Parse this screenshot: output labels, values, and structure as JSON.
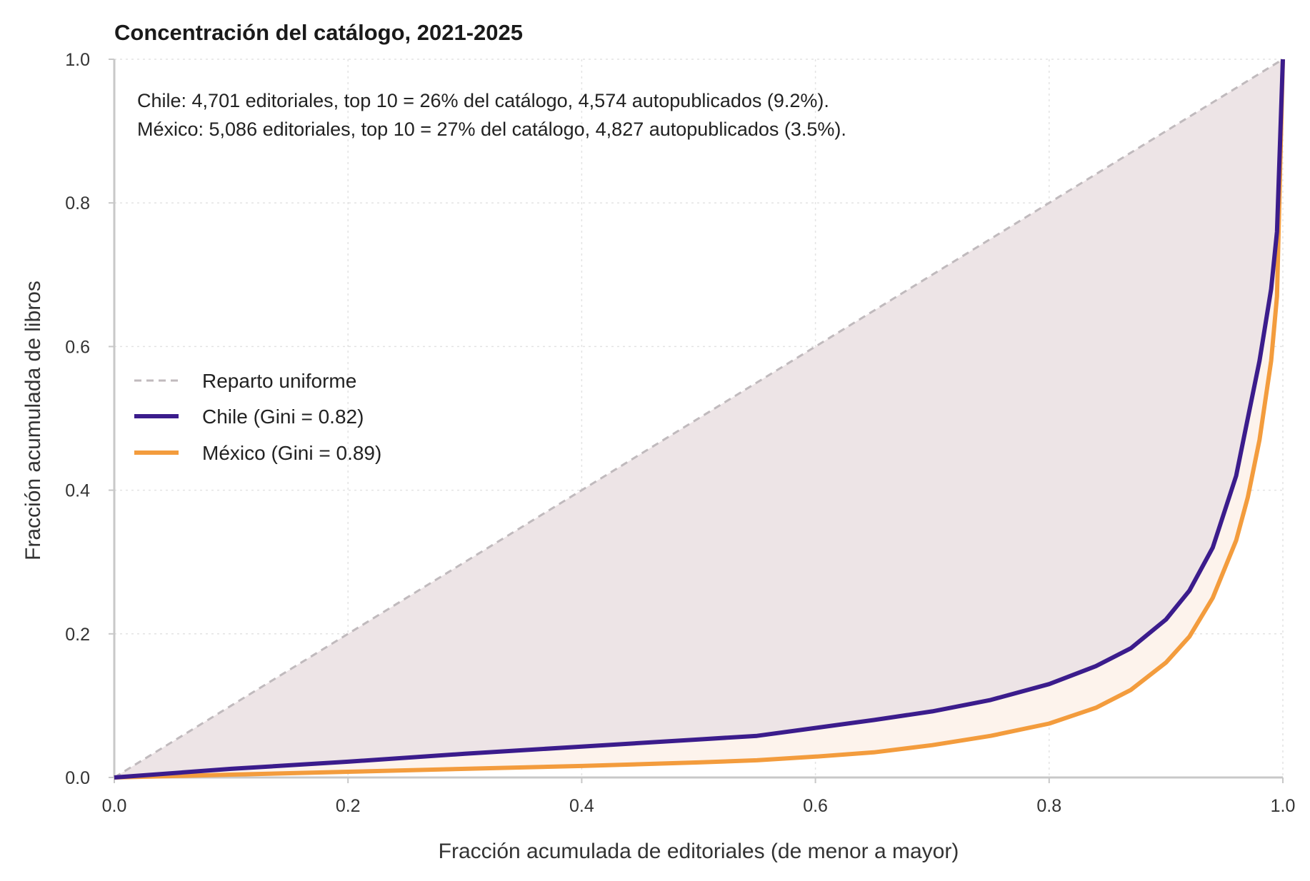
{
  "chart_data": {
    "type": "line",
    "title": "Concentración del catálogo, 2021-2025",
    "xlabel": "Fracción acumulada de editoriales (de menor a mayor)",
    "ylabel": "Fracción acumulada de libros",
    "xlim": [
      0,
      1
    ],
    "ylim": [
      0,
      1
    ],
    "xticks": [
      "0.0",
      "0.2",
      "0.4",
      "0.6",
      "0.8",
      "1.0"
    ],
    "yticks": [
      "0.0",
      "0.2",
      "0.4",
      "0.6",
      "0.8",
      "1.0"
    ],
    "grid": true,
    "legend_position": "center-left",
    "annotations": [
      "Chile: 4,701 editoriales, top 10 = 26% del catálogo, 4,574 autopublicados (9.2%).",
      "México: 5,086 editoriales, top 10 = 27% del catálogo, 4,827 autopublicados (3.5%)."
    ],
    "series": [
      {
        "name": "Reparto uniforme",
        "color": "#c0babd",
        "style": "dashed",
        "x": [
          0,
          1
        ],
        "y": [
          0,
          1
        ]
      },
      {
        "name": "Chile (Gini = 0.82)",
        "color": "#3b1c8c",
        "style": "solid",
        "x": [
          0,
          0.1,
          0.2,
          0.3,
          0.4,
          0.5,
          0.55,
          0.6,
          0.65,
          0.7,
          0.75,
          0.8,
          0.84,
          0.87,
          0.9,
          0.92,
          0.94,
          0.96,
          0.97,
          0.98,
          0.99,
          0.995,
          1.0
        ],
        "y": [
          0,
          0.012,
          0.022,
          0.033,
          0.043,
          0.053,
          0.058,
          0.069,
          0.08,
          0.092,
          0.108,
          0.13,
          0.155,
          0.18,
          0.22,
          0.26,
          0.32,
          0.42,
          0.5,
          0.58,
          0.68,
          0.76,
          1.0
        ]
      },
      {
        "name": "México (Gini = 0.89)",
        "color": "#f39c3d",
        "style": "solid",
        "x": [
          0,
          0.1,
          0.2,
          0.3,
          0.4,
          0.5,
          0.55,
          0.6,
          0.65,
          0.7,
          0.75,
          0.8,
          0.84,
          0.87,
          0.9,
          0.92,
          0.94,
          0.96,
          0.97,
          0.98,
          0.99,
          0.995,
          1.0
        ],
        "y": [
          0,
          0.004,
          0.008,
          0.012,
          0.016,
          0.021,
          0.024,
          0.029,
          0.035,
          0.045,
          0.058,
          0.075,
          0.097,
          0.122,
          0.16,
          0.196,
          0.25,
          0.33,
          0.39,
          0.47,
          0.58,
          0.67,
          1.0
        ]
      }
    ]
  }
}
